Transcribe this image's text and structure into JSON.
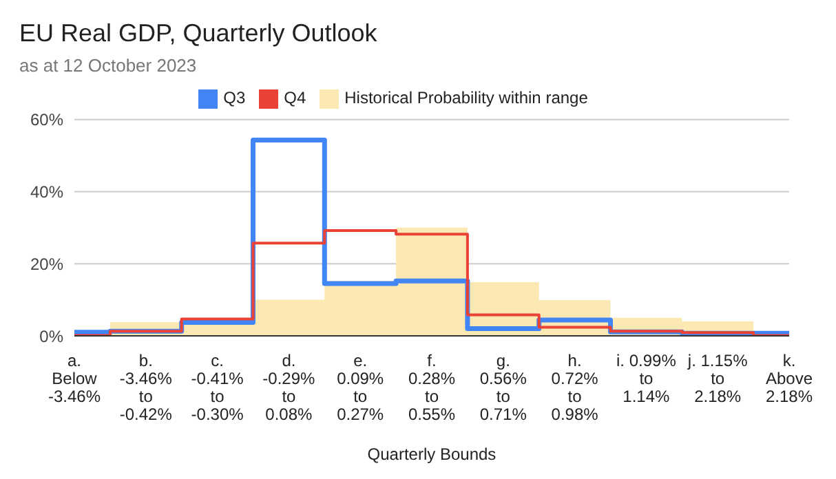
{
  "chart_data": {
    "type": "step",
    "title": "EU Real GDP, Quarterly Outlook",
    "subtitle": "as at 12 October 2023",
    "xlabel": "Quarterly Bounds",
    "categories": [
      "a.\nBelow\n-3.46%",
      "b.\n-3.46%\nto\n-0.42%",
      "c.\n-0.41%\nto\n-0.30%",
      "d.\n-0.29%\nto\n0.08%",
      "e.\n0.09%\nto\n0.27%",
      "f.\n0.28%\nto\n0.55%",
      "g.\n0.56%\nto\n0.71%",
      "h.\n0.72%\nto\n0.98%",
      "i. 0.99%\nto\n1.14%",
      "j. 1.15%\nto\n2.18%",
      "k.\nAbove\n2.18%"
    ],
    "series": [
      {
        "name": "Q3",
        "color": "#4285f4",
        "values": [
          1,
          1.3,
          3.7,
          54.3,
          14.5,
          15.2,
          2,
          4.4,
          1.1,
          0.7,
          0.7
        ]
      },
      {
        "name": "Q4",
        "color": "#ea4335",
        "values": [
          0.1,
          1.3,
          4.7,
          25.7,
          29.2,
          28.2,
          5.8,
          2.4,
          1.3,
          0.9,
          0.1
        ]
      },
      {
        "name": "Historical Probability within range",
        "type": "area",
        "color": "#fce8b2",
        "values": [
          1.3,
          3.8,
          4.7,
          10,
          15.2,
          30,
          14.9,
          9.9,
          5,
          4,
          0.9
        ]
      }
    ],
    "ylim": [
      0,
      60
    ],
    "yticks": [
      {
        "value": 0,
        "label": "0%"
      },
      {
        "value": 20,
        "label": "20%"
      },
      {
        "value": 40,
        "label": "40%"
      },
      {
        "value": 60,
        "label": "60%"
      }
    ],
    "grid": "y",
    "legend": "top",
    "marker": "none"
  }
}
